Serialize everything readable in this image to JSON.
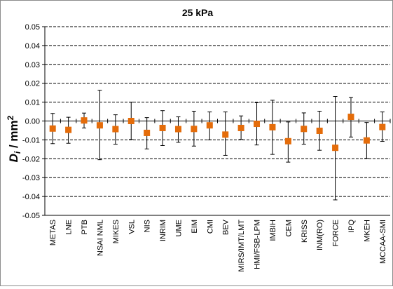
{
  "chart_data": {
    "type": "scatter",
    "title": "25 kPa",
    "ylabel": "Di / mm²",
    "ylabel_main": "D",
    "ylabel_sub": "i",
    "ylabel_rest": " / mm",
    "ylabel_sup": "2",
    "xlabel": "",
    "ylim": [
      -0.05,
      0.05
    ],
    "ytick_values": [
      0.05,
      0.04,
      0.03,
      0.02,
      0.01,
      0.0,
      -0.01,
      -0.02,
      -0.03,
      -0.04,
      -0.05
    ],
    "ytick_labels": [
      "0.05",
      "0.04",
      "0.03",
      "0.02",
      "0.01",
      "0.00",
      "-0.01",
      "-0.02",
      "-0.03",
      "-0.04",
      "-0.05"
    ],
    "grid": true,
    "legend": "none",
    "marker_color": "#E46C0A",
    "categories": [
      "METAS",
      "LNE",
      "PTB",
      "NSAI NML",
      "MIKES",
      "VSL",
      "NIS",
      "INRIM",
      "UME",
      "EIM",
      "CMI",
      "BEV",
      "MIRS/IMT/LMT",
      "HMI/FSB-LPM",
      "IMBIH",
      "CEM",
      "KRISS",
      "INM(RO)",
      "FORCE",
      "IPQ",
      "MKEH",
      "MCCAA-SMI"
    ],
    "values": [
      -0.004,
      -0.0047,
      0.0003,
      -0.0023,
      -0.0043,
      0.0,
      -0.0063,
      -0.0037,
      -0.0043,
      -0.0042,
      -0.0023,
      -0.0072,
      -0.0037,
      -0.0015,
      -0.0033,
      -0.0107,
      -0.0042,
      -0.0052,
      -0.0142,
      0.0022,
      -0.0103,
      -0.0032
    ],
    "err_upper": [
      0.004,
      0.002,
      0.0042,
      0.0163,
      0.0033,
      0.01,
      0.0018,
      0.0055,
      0.0022,
      0.0052,
      0.0048,
      0.0048,
      0.0027,
      0.0097,
      0.011,
      -0.0005,
      0.0043,
      0.0052,
      0.013,
      0.0125,
      -0.0008,
      0.0048
    ],
    "err_lower": [
      -0.012,
      -0.0118,
      -0.0037,
      -0.0205,
      -0.0123,
      -0.0098,
      -0.0148,
      -0.013,
      -0.0113,
      -0.0133,
      -0.01,
      -0.0182,
      -0.0098,
      -0.0127,
      -0.0177,
      -0.0218,
      -0.0123,
      -0.0155,
      -0.0418,
      -0.0085,
      -0.0198,
      -0.0108
    ]
  }
}
